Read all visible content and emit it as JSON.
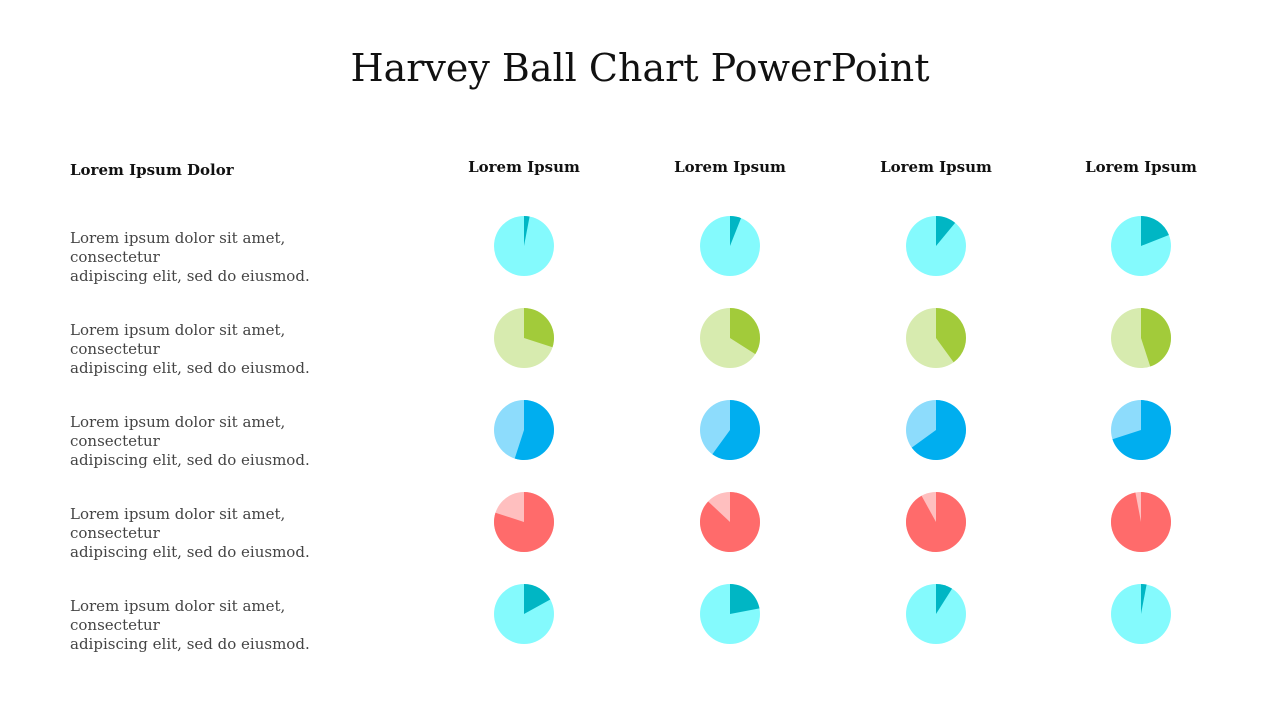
{
  "title": "Harvey Ball Chart PowerPoint",
  "row_header": "Lorem Ipsum Dolor",
  "column_headers": [
    "Lorem Ipsum",
    "Lorem Ipsum",
    "Lorem Ipsum",
    "Lorem Ipsum"
  ],
  "row_descriptions": [
    {
      "line1": "Lorem ipsum dolor sit amet, consectetur",
      "line2": "adipiscing elit, sed do eiusmod."
    },
    {
      "line1": "Lorem ipsum dolor sit amet, consectetur",
      "line2": "adipiscing elit, sed do eiusmod."
    },
    {
      "line1": "Lorem ipsum dolor sit amet, consectetur",
      "line2": "adipiscing elit, sed do eiusmod."
    },
    {
      "line1": "Lorem ipsum dolor sit amet, consectetur",
      "line2": "adipiscing elit, sed do eiusmod."
    },
    {
      "line1": "Lorem ipsum dolor sit amet, consectetur",
      "line2": "adipiscing elit, sed do eiusmod."
    }
  ],
  "row_colors": [
    {
      "base": "#84FAFD",
      "fill": "#00B6C4"
    },
    {
      "base": "#D7EBAF",
      "fill": "#A2CB3A"
    },
    {
      "base": "#8DDCFC",
      "fill": "#00AEEF"
    },
    {
      "base": "#FFBFBF",
      "fill": "#FF6B6B"
    },
    {
      "base": "#84FAFD",
      "fill": "#00B6C4"
    }
  ],
  "chart_data": {
    "type": "harvey-ball-matrix",
    "unit": "fraction of circle filled (dark segment, clockwise from 12 o'clock)",
    "rows": 5,
    "columns": 4,
    "values": [
      [
        0.03,
        0.06,
        0.11,
        0.19
      ],
      [
        0.3,
        0.34,
        0.4,
        0.45
      ],
      [
        0.55,
        0.6,
        0.65,
        0.7
      ],
      [
        0.8,
        0.87,
        0.92,
        0.97
      ],
      [
        0.17,
        0.22,
        0.09,
        0.03
      ]
    ]
  }
}
